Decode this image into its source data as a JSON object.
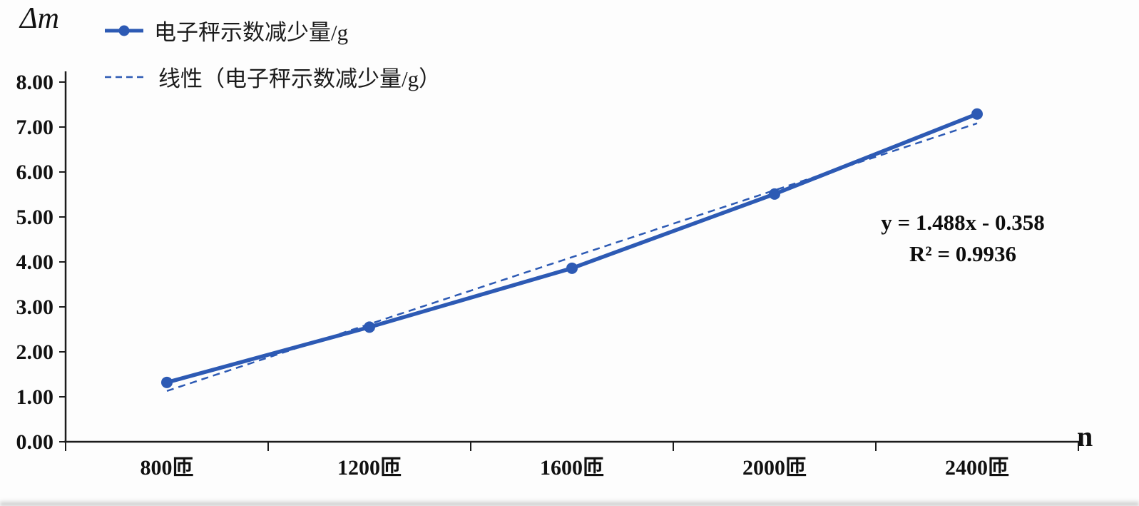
{
  "chart_data": {
    "type": "line",
    "categories": [
      "800匝",
      "1200匝",
      "1600匝",
      "2000匝",
      "2400匝"
    ],
    "series": [
      {
        "name": "电子秤示数减少量/g",
        "values": [
          1.32,
          2.55,
          3.86,
          5.51,
          7.29
        ],
        "style": "solid-with-round-markers"
      },
      {
        "name": "线性（电子秤示数减少量/g）",
        "style": "dashed-trendline",
        "slope": 1.488,
        "intercept": -0.358
      }
    ],
    "ylabel": "Δm",
    "xlabel": "n",
    "ylim": [
      0,
      8
    ],
    "ytick_step": 1,
    "ytick_labels": [
      "0.00",
      "1.00",
      "2.00",
      "3.00",
      "4.00",
      "5.00",
      "6.00",
      "7.00",
      "8.00"
    ],
    "annotation": {
      "line1": "y = 1.488x - 0.358",
      "line2": "R² = 0.9936"
    },
    "legend_position": "top-left",
    "grid": false,
    "accent_color": "#2d5ab4",
    "axis_color": "#1c1c1c",
    "text_color": "#111111"
  }
}
